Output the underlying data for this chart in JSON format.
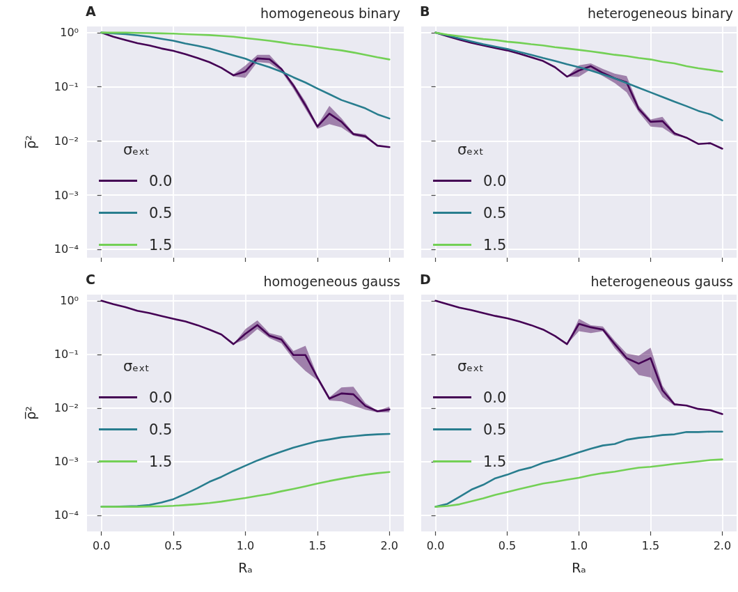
{
  "chart_data": [
    {
      "type": "line",
      "title": "homogeneous binary",
      "annotations": [
        "A"
      ],
      "ylabel": "ρ̅²",
      "legend_title": "σₑₓₜ",
      "legend": "bottom left",
      "grid": true,
      "tick_labels": "y",
      "x": [
        0,
        0.083,
        0.167,
        0.25,
        0.333,
        0.417,
        0.5,
        0.583,
        0.667,
        0.75,
        0.833,
        0.917,
        1,
        1.083,
        1.167,
        1.25,
        1.333,
        1.417,
        1.5,
        1.583,
        1.667,
        1.75,
        1.833,
        1.917,
        2
      ],
      "xlim": [
        -0.1,
        2.1
      ],
      "xticks": [
        {
          "value": 0,
          "label": null
        },
        {
          "value": 0.5,
          "label": null
        },
        {
          "value": 1,
          "label": null
        },
        {
          "value": 1.5,
          "label": null
        },
        {
          "value": 2,
          "label": null
        }
      ],
      "log": "y",
      "ylim": [
        7e-05,
        1.3
      ],
      "yticks": [
        {
          "value": 0.0001,
          "label": "10⁻⁴"
        },
        {
          "value": 0.001,
          "label": "10⁻³"
        },
        {
          "value": 0.01,
          "label": "10⁻²"
        },
        {
          "value": 0.1,
          "label": "10⁻¹"
        },
        {
          "value": 1,
          "label": "10⁰"
        }
      ],
      "series": [
        {
          "name": "0.0",
          "color": "#440154",
          "values": [
            1.0,
            0.84,
            0.73,
            0.64,
            0.58,
            0.51,
            0.46,
            0.4,
            0.34,
            0.285,
            0.224,
            0.163,
            0.193,
            0.334,
            0.324,
            0.213,
            0.106,
            0.0455,
            0.0185,
            0.032,
            0.0226,
            0.0134,
            0.0122,
            0.0082,
            0.0077
          ],
          "lower": [
            1.0,
            0.84,
            0.73,
            0.64,
            0.58,
            0.51,
            0.46,
            0.4,
            0.34,
            0.285,
            0.224,
            0.155,
            0.146,
            0.288,
            0.273,
            0.193,
            0.092,
            0.039,
            0.0168,
            0.0205,
            0.0177,
            0.0125,
            0.0113,
            0.0082,
            0.0077
          ],
          "upper": [
            1.0,
            0.84,
            0.73,
            0.64,
            0.58,
            0.51,
            0.46,
            0.4,
            0.34,
            0.285,
            0.224,
            0.17,
            0.248,
            0.388,
            0.388,
            0.224,
            0.117,
            0.053,
            0.0195,
            0.0446,
            0.0263,
            0.0141,
            0.0133,
            0.0082,
            0.0077
          ]
        },
        {
          "name": "0.5",
          "color": "#287d8e",
          "values": [
            1.0,
            0.97,
            0.94,
            0.89,
            0.84,
            0.77,
            0.71,
            0.63,
            0.57,
            0.51,
            0.44,
            0.38,
            0.33,
            0.27,
            0.23,
            0.19,
            0.15,
            0.12,
            0.093,
            0.073,
            0.057,
            0.048,
            0.04,
            0.031,
            0.026
          ]
        },
        {
          "name": "1.5",
          "color": "#73d055",
          "values": [
            1.0,
            1.0,
            1.0,
            0.99,
            0.98,
            0.97,
            0.96,
            0.94,
            0.92,
            0.9,
            0.87,
            0.84,
            0.79,
            0.75,
            0.71,
            0.66,
            0.61,
            0.58,
            0.54,
            0.5,
            0.47,
            0.43,
            0.39,
            0.35,
            0.32
          ]
        }
      ]
    },
    {
      "type": "line",
      "title": "heterogeneous binary",
      "annotations": [
        "B"
      ],
      "legend_title": "σₑₓₜ",
      "legend": "bottom left",
      "grid": true,
      "tick_labels": false,
      "x": [
        0,
        0.083,
        0.167,
        0.25,
        0.333,
        0.417,
        0.5,
        0.583,
        0.667,
        0.75,
        0.833,
        0.917,
        1,
        1.083,
        1.167,
        1.25,
        1.333,
        1.417,
        1.5,
        1.583,
        1.667,
        1.75,
        1.833,
        1.917,
        2
      ],
      "xlim": [
        -0.1,
        2.1
      ],
      "xticks": [
        {
          "value": 0,
          "label": null
        },
        {
          "value": 0.5,
          "label": null
        },
        {
          "value": 1,
          "label": null
        },
        {
          "value": 1.5,
          "label": null
        },
        {
          "value": 2,
          "label": null
        }
      ],
      "log": "y",
      "ylim": [
        7e-05,
        1.3
      ],
      "yticks": [
        {
          "value": 0.0001,
          "label": null
        },
        {
          "value": 0.001,
          "label": null
        },
        {
          "value": 0.01,
          "label": null
        },
        {
          "value": 0.1,
          "label": null
        },
        {
          "value": 1,
          "label": null
        }
      ],
      "series": [
        {
          "name": "0.0",
          "color": "#440154",
          "values": [
            1.0,
            0.86,
            0.74,
            0.65,
            0.58,
            0.52,
            0.47,
            0.41,
            0.35,
            0.3,
            0.23,
            0.154,
            0.2,
            0.24,
            0.18,
            0.143,
            0.121,
            0.039,
            0.0226,
            0.0233,
            0.0138,
            0.0115,
            0.0088,
            0.0091,
            0.0072
          ],
          "lower": [
            1.0,
            0.86,
            0.74,
            0.65,
            0.58,
            0.52,
            0.47,
            0.41,
            0.35,
            0.3,
            0.23,
            0.154,
            0.153,
            0.21,
            0.158,
            0.117,
            0.079,
            0.034,
            0.0185,
            0.0176,
            0.0125,
            0.0115,
            0.0088,
            0.0091,
            0.0072
          ],
          "upper": [
            1.0,
            0.86,
            0.74,
            0.65,
            0.58,
            0.52,
            0.47,
            0.41,
            0.35,
            0.3,
            0.23,
            0.154,
            0.25,
            0.27,
            0.213,
            0.175,
            0.158,
            0.045,
            0.025,
            0.028,
            0.0146,
            0.0115,
            0.0088,
            0.0091,
            0.0072
          ]
        },
        {
          "name": "0.5",
          "color": "#287d8e",
          "values": [
            1.0,
            0.89,
            0.78,
            0.69,
            0.61,
            0.55,
            0.5,
            0.44,
            0.39,
            0.34,
            0.3,
            0.26,
            0.23,
            0.2,
            0.17,
            0.143,
            0.117,
            0.096,
            0.079,
            0.065,
            0.053,
            0.044,
            0.036,
            0.031,
            0.024
          ]
        },
        {
          "name": "1.5",
          "color": "#73d055",
          "values": [
            1.0,
            0.92,
            0.86,
            0.81,
            0.76,
            0.73,
            0.68,
            0.65,
            0.61,
            0.58,
            0.54,
            0.51,
            0.48,
            0.45,
            0.42,
            0.39,
            0.37,
            0.34,
            0.32,
            0.29,
            0.27,
            0.24,
            0.22,
            0.205,
            0.19
          ]
        }
      ]
    },
    {
      "type": "line",
      "title": "homogeneous gauss",
      "annotations": [
        "C"
      ],
      "xlabel": "Rₐ",
      "ylabel": "ρ̅²",
      "legend_title": "σₑₓₜ",
      "legend": "center left",
      "grid": true,
      "x": [
        0,
        0.083,
        0.167,
        0.25,
        0.333,
        0.417,
        0.5,
        0.583,
        0.667,
        0.75,
        0.833,
        0.917,
        1,
        1.083,
        1.167,
        1.25,
        1.333,
        1.417,
        1.5,
        1.583,
        1.667,
        1.75,
        1.833,
        1.917,
        2
      ],
      "xlim": [
        -0.1,
        2.1
      ],
      "xticks": [
        {
          "value": 0,
          "label": "0.0"
        },
        {
          "value": 0.5,
          "label": "0.5"
        },
        {
          "value": 1,
          "label": "1.0"
        },
        {
          "value": 1.5,
          "label": "1.5"
        },
        {
          "value": 2,
          "label": "2.0"
        }
      ],
      "log": "y",
      "ylim": [
        5e-05,
        1.3
      ],
      "yticks": [
        {
          "value": 0.0001,
          "label": "10⁻⁴"
        },
        {
          "value": 0.001,
          "label": "10⁻³"
        },
        {
          "value": 0.01,
          "label": "10⁻²"
        },
        {
          "value": 0.1,
          "label": "10⁻¹"
        },
        {
          "value": 1,
          "label": "10⁰"
        }
      ],
      "series": [
        {
          "name": "0.0",
          "color": "#440154",
          "values": [
            1.0,
            0.86,
            0.76,
            0.65,
            0.59,
            0.52,
            0.46,
            0.41,
            0.35,
            0.289,
            0.235,
            0.155,
            0.242,
            0.352,
            0.223,
            0.189,
            0.097,
            0.097,
            0.037,
            0.015,
            0.0187,
            0.018,
            0.0109,
            0.0087,
            0.0094
          ],
          "lower": [
            1.0,
            0.86,
            0.76,
            0.65,
            0.59,
            0.52,
            0.46,
            0.41,
            0.35,
            0.289,
            0.235,
            0.155,
            0.19,
            0.295,
            0.2,
            0.16,
            0.081,
            0.049,
            0.033,
            0.0138,
            0.0133,
            0.011,
            0.0093,
            0.0083,
            0.0083
          ],
          "upper": [
            1.0,
            0.86,
            0.76,
            0.65,
            0.59,
            0.52,
            0.46,
            0.41,
            0.35,
            0.289,
            0.235,
            0.155,
            0.295,
            0.43,
            0.25,
            0.22,
            0.115,
            0.144,
            0.04,
            0.0158,
            0.0242,
            0.025,
            0.0123,
            0.0089,
            0.0106
          ]
        },
        {
          "name": "0.5",
          "color": "#287d8e",
          "values": [
            0.000144,
            0.000144,
            0.000146,
            0.000149,
            0.000156,
            0.000173,
            0.0002,
            0.00025,
            0.00032,
            0.00042,
            0.00052,
            0.00067,
            0.00084,
            0.00105,
            0.00128,
            0.00153,
            0.00182,
            0.0021,
            0.0024,
            0.0026,
            0.00284,
            0.00298,
            0.00313,
            0.00323,
            0.00329
          ]
        },
        {
          "name": "1.5",
          "color": "#73d055",
          "values": [
            0.000144,
            0.000144,
            0.000144,
            0.000144,
            0.000146,
            0.000147,
            0.00015,
            0.000155,
            0.000161,
            0.000169,
            0.00018,
            0.000195,
            0.00021,
            0.00023,
            0.00025,
            0.00028,
            0.00031,
            0.000346,
            0.00039,
            0.000435,
            0.00048,
            0.000525,
            0.00057,
            0.00061,
            0.00064
          ]
        }
      ]
    },
    {
      "type": "line",
      "title": "heterogeneous gauss",
      "annotations": [
        "D"
      ],
      "xlabel": "Rₐ",
      "legend_title": "σₑₓₜ",
      "legend": "center left",
      "grid": true,
      "tick_labels": "x",
      "x": [
        0,
        0.083,
        0.167,
        0.25,
        0.333,
        0.417,
        0.5,
        0.583,
        0.667,
        0.75,
        0.833,
        0.917,
        1,
        1.083,
        1.167,
        1.25,
        1.333,
        1.417,
        1.5,
        1.583,
        1.667,
        1.75,
        1.833,
        1.917,
        2
      ],
      "xlim": [
        -0.1,
        2.1
      ],
      "xticks": [
        {
          "value": 0,
          "label": "0.0"
        },
        {
          "value": 0.5,
          "label": "0.5"
        },
        {
          "value": 1,
          "label": "1.0"
        },
        {
          "value": 1.5,
          "label": "1.5"
        },
        {
          "value": 2,
          "label": "2.0"
        }
      ],
      "log": "y",
      "ylim": [
        5e-05,
        1.3
      ],
      "yticks": [
        {
          "value": 0.0001,
          "label": null
        },
        {
          "value": 0.001,
          "label": null
        },
        {
          "value": 0.01,
          "label": null
        },
        {
          "value": 0.1,
          "label": null
        },
        {
          "value": 1,
          "label": null
        }
      ],
      "series": [
        {
          "name": "0.0",
          "color": "#440154",
          "values": [
            1.0,
            0.86,
            0.74,
            0.67,
            0.59,
            0.52,
            0.47,
            0.41,
            0.35,
            0.29,
            0.22,
            0.155,
            0.37,
            0.32,
            0.29,
            0.155,
            0.085,
            0.067,
            0.085,
            0.0213,
            0.0117,
            0.0111,
            0.0096,
            0.0091,
            0.0077
          ],
          "lower": [
            1.0,
            0.86,
            0.74,
            0.67,
            0.59,
            0.52,
            0.47,
            0.41,
            0.35,
            0.29,
            0.22,
            0.155,
            0.27,
            0.25,
            0.27,
            0.13,
            0.074,
            0.041,
            0.037,
            0.016,
            0.011,
            0.0111,
            0.0096,
            0.0091,
            0.0077
          ],
          "upper": [
            1.0,
            0.86,
            0.74,
            0.67,
            0.59,
            0.52,
            0.47,
            0.41,
            0.35,
            0.29,
            0.22,
            0.155,
            0.46,
            0.35,
            0.33,
            0.18,
            0.104,
            0.094,
            0.133,
            0.026,
            0.0123,
            0.0111,
            0.0096,
            0.0091,
            0.0077
          ]
        },
        {
          "name": "0.5",
          "color": "#287d8e",
          "values": [
            0.000144,
            0.000163,
            0.00022,
            0.0003,
            0.00037,
            0.00049,
            0.00057,
            0.00069,
            0.00078,
            0.00095,
            0.00108,
            0.00126,
            0.00149,
            0.00174,
            0.002,
            0.00213,
            0.00256,
            0.00278,
            0.00292,
            0.00313,
            0.00323,
            0.00356,
            0.00356,
            0.00363,
            0.00363
          ]
        },
        {
          "name": "1.5",
          "color": "#73d055",
          "values": [
            0.000144,
            0.000149,
            0.00016,
            0.000182,
            0.000207,
            0.00024,
            0.00027,
            0.000307,
            0.000346,
            0.00039,
            0.00042,
            0.00046,
            0.0005,
            0.00056,
            0.00061,
            0.00065,
            0.00071,
            0.00077,
            0.0008,
            0.00085,
            0.00091,
            0.00096,
            0.00101,
            0.00107,
            0.0011
          ]
        }
      ]
    }
  ]
}
